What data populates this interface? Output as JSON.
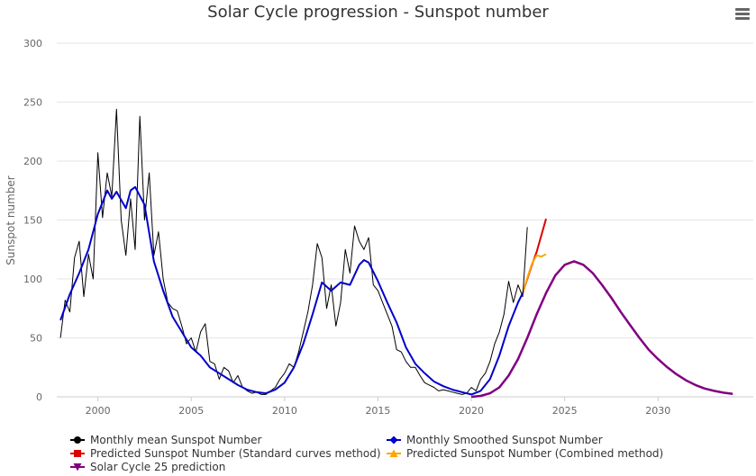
{
  "chart_data": {
    "type": "line",
    "title": "Solar Cycle progression - Sunspot number",
    "xlabel": "",
    "ylabel": "Sunspot number",
    "xlim": [
      1997.8,
      2035.1
    ],
    "ylim": [
      0,
      300
    ],
    "x_ticks": [
      "2000",
      "2005",
      "2010",
      "2015",
      "2020",
      "2025",
      "2030"
    ],
    "y_ticks": [
      "0",
      "50",
      "100",
      "150",
      "200",
      "250",
      "300"
    ],
    "grid": "horizontal",
    "legend_position": "bottom-left",
    "series": [
      {
        "name": "Monthly mean Sunspot Number",
        "color": "#000000",
        "x": [
          1998.0,
          1998.25,
          1998.5,
          1998.75,
          1999.0,
          1999.25,
          1999.5,
          1999.75,
          2000.0,
          2000.25,
          2000.5,
          2000.75,
          2001.0,
          2001.25,
          2001.5,
          2001.75,
          2002.0,
          2002.25,
          2002.5,
          2002.75,
          2003.0,
          2003.25,
          2003.5,
          2003.75,
          2004.0,
          2004.25,
          2004.5,
          2004.75,
          2005.0,
          2005.25,
          2005.5,
          2005.75,
          2006.0,
          2006.25,
          2006.5,
          2006.75,
          2007.0,
          2007.25,
          2007.5,
          2007.75,
          2008.0,
          2008.25,
          2008.5,
          2008.75,
          2009.0,
          2009.25,
          2009.5,
          2009.75,
          2010.0,
          2010.25,
          2010.5,
          2010.75,
          2011.0,
          2011.25,
          2011.5,
          2011.75,
          2012.0,
          2012.25,
          2012.5,
          2012.75,
          2013.0,
          2013.25,
          2013.5,
          2013.75,
          2014.0,
          2014.25,
          2014.5,
          2014.75,
          2015.0,
          2015.25,
          2015.5,
          2015.75,
          2016.0,
          2016.25,
          2016.5,
          2016.75,
          2017.0,
          2017.25,
          2017.5,
          2017.75,
          2018.0,
          2018.25,
          2018.5,
          2018.75,
          2019.0,
          2019.25,
          2019.5,
          2019.75,
          2020.0,
          2020.25,
          2020.5,
          2020.75,
          2021.0,
          2021.25,
          2021.5,
          2021.75,
          2022.0,
          2022.25,
          2022.5,
          2022.75,
          2023.0
        ],
        "y": [
          50,
          82,
          72,
          118,
          132,
          85,
          121,
          100,
          207,
          152,
          190,
          170,
          244,
          150,
          120,
          168,
          125,
          238,
          150,
          190,
          120,
          140,
          100,
          80,
          75,
          73,
          60,
          45,
          50,
          38,
          55,
          62,
          30,
          28,
          15,
          25,
          22,
          12,
          18,
          8,
          5,
          3,
          4,
          2,
          2,
          5,
          8,
          15,
          20,
          28,
          25,
          38,
          55,
          72,
          95,
          130,
          118,
          75,
          95,
          60,
          80,
          125,
          105,
          145,
          132,
          125,
          135,
          95,
          90,
          80,
          70,
          60,
          40,
          38,
          30,
          25,
          25,
          18,
          12,
          10,
          8,
          5,
          6,
          5,
          4,
          3,
          2,
          3,
          8,
          5,
          15,
          20,
          30,
          45,
          55,
          70,
          98,
          80,
          95,
          85,
          144
        ]
      },
      {
        "name": "Monthly Smoothed Sunspot Number",
        "color": "#0000cc",
        "x": [
          1998.0,
          1998.5,
          1999.0,
          1999.5,
          2000.0,
          2000.5,
          2000.75,
          2001.0,
          2001.5,
          2001.75,
          2002.0,
          2002.5,
          2003.0,
          2003.5,
          2004.0,
          2004.5,
          2005.0,
          2005.5,
          2006.0,
          2006.5,
          2007.0,
          2007.5,
          2008.0,
          2008.5,
          2009.0,
          2009.5,
          2010.0,
          2010.5,
          2011.0,
          2011.5,
          2012.0,
          2012.5,
          2013.0,
          2013.5,
          2014.0,
          2014.25,
          2014.5,
          2015.0,
          2015.5,
          2016.0,
          2016.5,
          2017.0,
          2017.5,
          2018.0,
          2018.5,
          2019.0,
          2019.5,
          2020.0,
          2020.5,
          2021.0,
          2021.5,
          2022.0,
          2022.5,
          2022.75
        ],
        "y": [
          65,
          87,
          105,
          125,
          155,
          175,
          168,
          174,
          160,
          175,
          178,
          163,
          115,
          90,
          68,
          55,
          42,
          35,
          25,
          20,
          15,
          10,
          6,
          4,
          3,
          6,
          12,
          25,
          45,
          70,
          97,
          90,
          97,
          95,
          112,
          116,
          114,
          98,
          80,
          63,
          42,
          28,
          20,
          13,
          9,
          6,
          4,
          2,
          5,
          15,
          35,
          60,
          80,
          88
        ]
      },
      {
        "name": "Predicted Sunspot Number (Standard curves method)",
        "color": "#dd0000",
        "x": [
          2022.75,
          2023.0,
          2023.25,
          2023.5,
          2023.75,
          2024.0
        ],
        "y": [
          88,
          100,
          112,
          123,
          137,
          151
        ]
      },
      {
        "name": "Predicted Sunspot Number (Combined method)",
        "color": "#ffa500",
        "x": [
          2022.75,
          2023.0,
          2023.25,
          2023.5,
          2023.75,
          2024.0
        ],
        "y": [
          88,
          101,
          113,
          120,
          119,
          121
        ]
      },
      {
        "name": "Solar Cycle 25 prediction",
        "color": "#800080",
        "x": [
          2020.0,
          2020.5,
          2021.0,
          2021.5,
          2022.0,
          2022.5,
          2023.0,
          2023.5,
          2024.0,
          2024.5,
          2025.0,
          2025.5,
          2026.0,
          2026.5,
          2027.0,
          2027.5,
          2028.0,
          2028.5,
          2029.0,
          2029.5,
          2030.0,
          2030.5,
          2031.0,
          2031.5,
          2032.0,
          2032.5,
          2033.0,
          2033.5,
          2034.0
        ],
        "y": [
          0,
          0.8,
          3,
          8,
          18,
          32,
          50,
          70,
          88,
          103,
          112,
          115,
          112,
          105,
          95,
          84,
          72,
          61,
          50,
          40,
          32,
          25,
          19,
          14,
          10,
          7,
          5,
          3.5,
          2.5
        ]
      }
    ]
  }
}
